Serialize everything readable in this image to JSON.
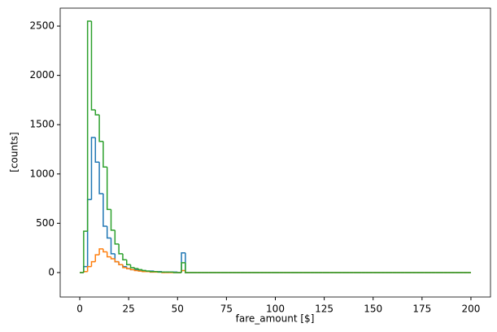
{
  "chart_data": {
    "type": "histogram",
    "xlabel": "fare_amount [$]",
    "ylabel": "[counts]",
    "bins": [
      0,
      2,
      4,
      6,
      8,
      10,
      12,
      14,
      16,
      18,
      20,
      22,
      24,
      26,
      28,
      30,
      32,
      34,
      36,
      38,
      40,
      42,
      44,
      46,
      48,
      50,
      52,
      54,
      56,
      58,
      60,
      62,
      64,
      66,
      68,
      70,
      72,
      74,
      76,
      78,
      80,
      82,
      84,
      86,
      88,
      90,
      92,
      94,
      96,
      98,
      100,
      102,
      104,
      106,
      108,
      110,
      112,
      114,
      116,
      118,
      120,
      122,
      124,
      126,
      128,
      130,
      132,
      134,
      136,
      138,
      140,
      142,
      144,
      146,
      148,
      150,
      152,
      154,
      156,
      158,
      160,
      162,
      164,
      166,
      168,
      170,
      172,
      174,
      176,
      178,
      180,
      182,
      184,
      186,
      188,
      190,
      192,
      194,
      196,
      198,
      200
    ],
    "series": [
      {
        "color": "#1f77b4",
        "values": [
          0,
          60,
          740,
          1370,
          1120,
          800,
          470,
          350,
          190,
          110,
          80,
          60,
          40,
          30,
          30,
          20,
          20,
          15,
          15,
          10,
          10,
          5,
          5,
          5,
          5,
          0,
          200,
          0,
          0,
          0,
          0,
          0,
          0,
          0,
          0,
          0,
          0,
          0,
          0,
          0,
          0,
          0,
          0,
          0,
          0,
          0,
          0,
          0,
          0,
          0,
          0,
          0,
          0,
          0,
          0,
          0,
          0,
          0,
          0,
          0,
          0,
          0,
          0,
          0,
          0,
          0,
          0,
          0,
          0,
          0,
          0,
          0,
          0,
          0,
          0,
          0,
          0,
          0,
          0,
          0,
          0,
          0,
          0,
          0,
          0,
          0,
          0,
          0,
          0,
          0,
          0,
          0,
          0,
          0,
          0,
          0,
          0,
          0,
          0,
          0
        ]
      },
      {
        "color": "#ff7f0e",
        "values": [
          0,
          10,
          60,
          110,
          180,
          240,
          210,
          160,
          140,
          110,
          80,
          50,
          40,
          30,
          20,
          15,
          10,
          10,
          5,
          5,
          5,
          0,
          0,
          0,
          0,
          0,
          20,
          0,
          0,
          0,
          0,
          0,
          0,
          0,
          0,
          0,
          0,
          0,
          0,
          0,
          0,
          0,
          0,
          0,
          0,
          0,
          0,
          0,
          0,
          0,
          0,
          0,
          0,
          0,
          0,
          0,
          0,
          0,
          0,
          0,
          0,
          0,
          0,
          0,
          0,
          0,
          0,
          0,
          0,
          0,
          0,
          0,
          0,
          0,
          0,
          0,
          0,
          0,
          0,
          0,
          0,
          0,
          0,
          0,
          0,
          0,
          0,
          0,
          0,
          0,
          0,
          0,
          0,
          0,
          0,
          0,
          0,
          0,
          0,
          0
        ]
      },
      {
        "color": "#2ca02c",
        "values": [
          0,
          420,
          2550,
          1650,
          1600,
          1330,
          1070,
          640,
          430,
          290,
          190,
          130,
          80,
          50,
          40,
          30,
          20,
          15,
          10,
          10,
          5,
          5,
          5,
          5,
          0,
          0,
          100,
          0,
          0,
          0,
          0,
          0,
          0,
          0,
          0,
          0,
          0,
          0,
          0,
          0,
          0,
          0,
          0,
          0,
          0,
          0,
          0,
          0,
          0,
          0,
          0,
          0,
          0,
          0,
          0,
          0,
          0,
          0,
          0,
          0,
          0,
          0,
          0,
          0,
          0,
          0,
          0,
          0,
          0,
          0,
          0,
          0,
          0,
          0,
          0,
          0,
          0,
          0,
          0,
          0,
          0,
          0,
          0,
          0,
          0,
          0,
          0,
          0,
          0,
          0,
          0,
          0,
          0,
          0,
          0,
          0,
          0,
          0,
          0,
          0
        ]
      }
    ],
    "xlim": [
      -10,
      210
    ],
    "ylim": [
      -248,
      2682
    ],
    "xticks": [
      0,
      25,
      50,
      75,
      100,
      125,
      150,
      175,
      200
    ],
    "yticks": [
      0,
      500,
      1000,
      1500,
      2000,
      2500
    ]
  }
}
